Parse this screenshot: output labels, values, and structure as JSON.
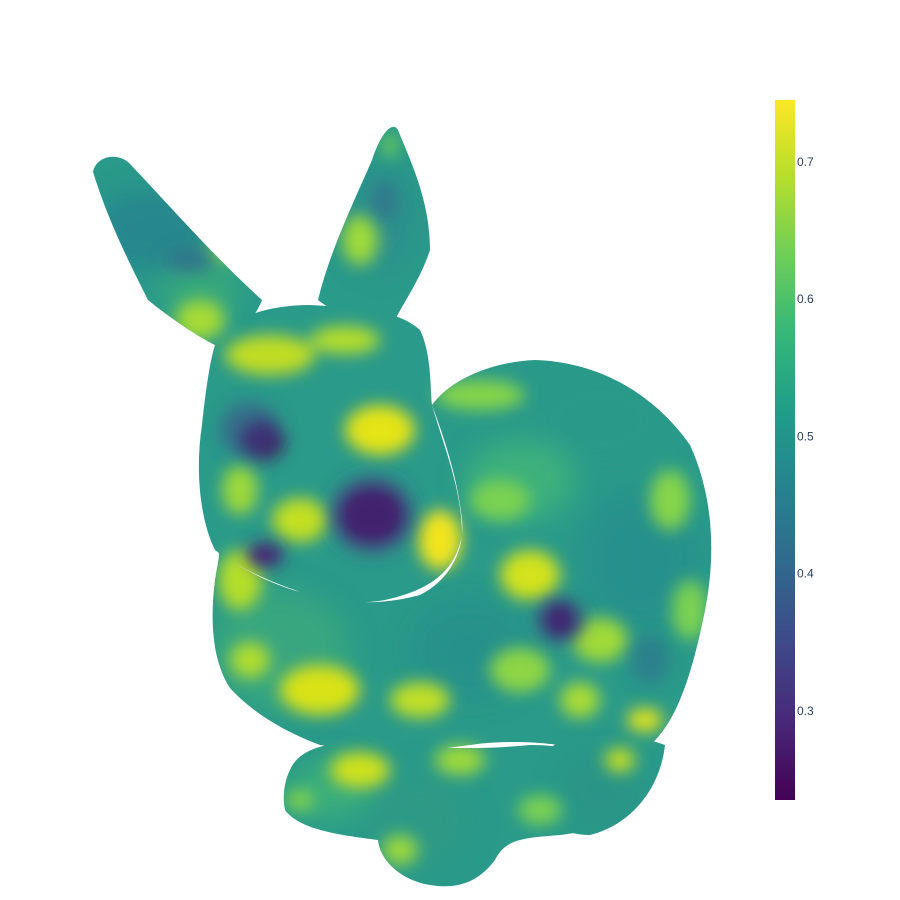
{
  "chart_data": {
    "type": "mesh3d",
    "colorscale": "Viridis",
    "colorscale_stops": [
      [
        0.0,
        "#440154"
      ],
      [
        0.111,
        "#482878"
      ],
      [
        0.222,
        "#3e4989"
      ],
      [
        0.333,
        "#31688e"
      ],
      [
        0.444,
        "#26828e"
      ],
      [
        0.556,
        "#1f9e89"
      ],
      [
        0.667,
        "#35b779"
      ],
      [
        0.778,
        "#6ece58"
      ],
      [
        0.889,
        "#b5de2b"
      ],
      [
        1.0,
        "#fde725"
      ]
    ],
    "colorbar": {
      "range": [
        0.235,
        0.745
      ],
      "ticks": [
        {
          "value": 0.3,
          "label": "0.3"
        },
        {
          "value": 0.4,
          "label": "0.4"
        },
        {
          "value": 0.5,
          "label": "0.5"
        },
        {
          "value": 0.6,
          "label": "0.6"
        },
        {
          "value": 0.7,
          "label": "0.7"
        }
      ],
      "title": ""
    },
    "subject": "stanford-bunny"
  }
}
